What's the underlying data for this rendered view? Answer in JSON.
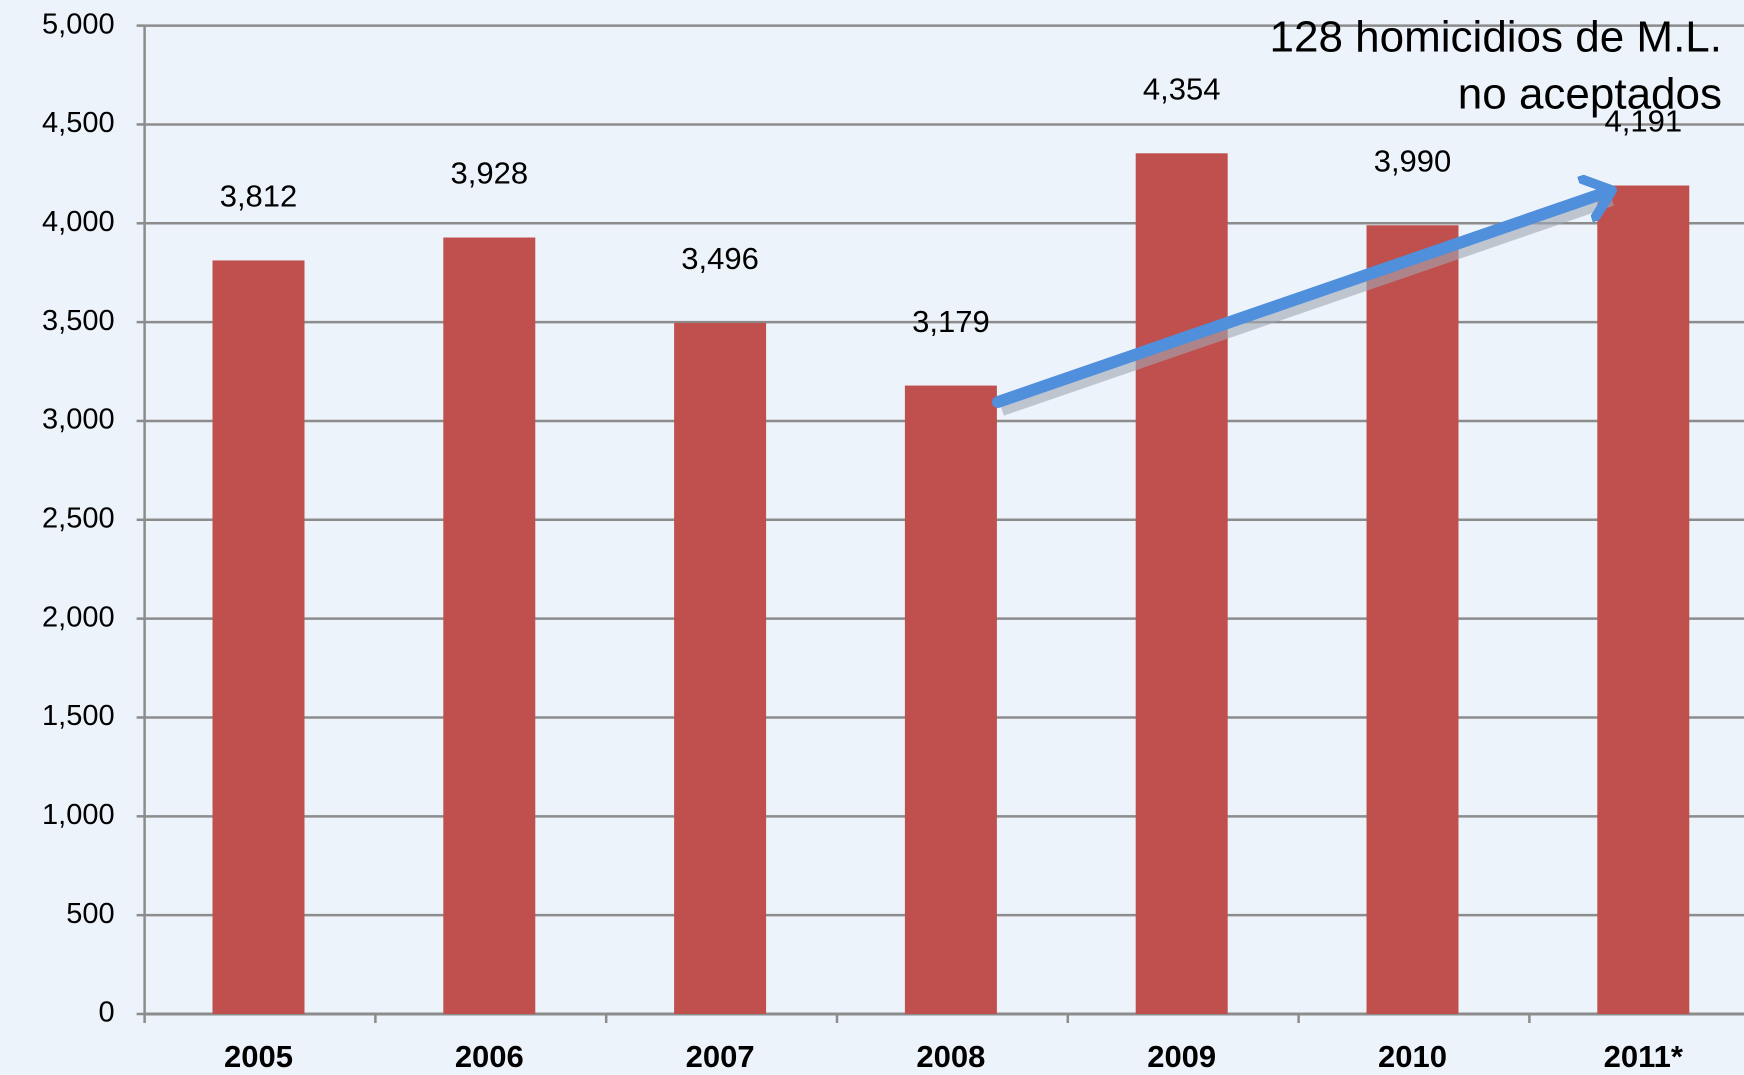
{
  "chart_data": {
    "type": "bar",
    "categories": [
      "2005",
      "2006",
      "2007",
      "2008",
      "2009",
      "2010",
      "2011*"
    ],
    "values": [
      3812,
      3928,
      3496,
      3179,
      4354,
      3990,
      4191
    ],
    "value_labels": [
      "3,812",
      "3,928",
      "3,496",
      "3,179",
      "4,354",
      "3,990",
      "4,191"
    ],
    "color": "#c0504d",
    "ylim": [
      0,
      5000
    ],
    "yticks": [
      0,
      500,
      {
        "value": 1000,
        "label": "1,000"
      },
      {
        "value": 1500,
        "label": "1,500"
      },
      {
        "value": 2000,
        "label": "2,000"
      },
      {
        "value": 2500,
        "label": "2,500"
      },
      {
        "value": 3000,
        "label": "3,000"
      },
      {
        "value": 3500,
        "label": "3,500"
      },
      {
        "value": 4000,
        "label": "4,000"
      },
      {
        "value": 4500,
        "label": "4,500"
      },
      {
        "value": 5000,
        "label": "5,000"
      }
    ],
    "grid": true,
    "annotation": [
      "128 homicidios  de M.L.",
      "no aceptados"
    ]
  }
}
